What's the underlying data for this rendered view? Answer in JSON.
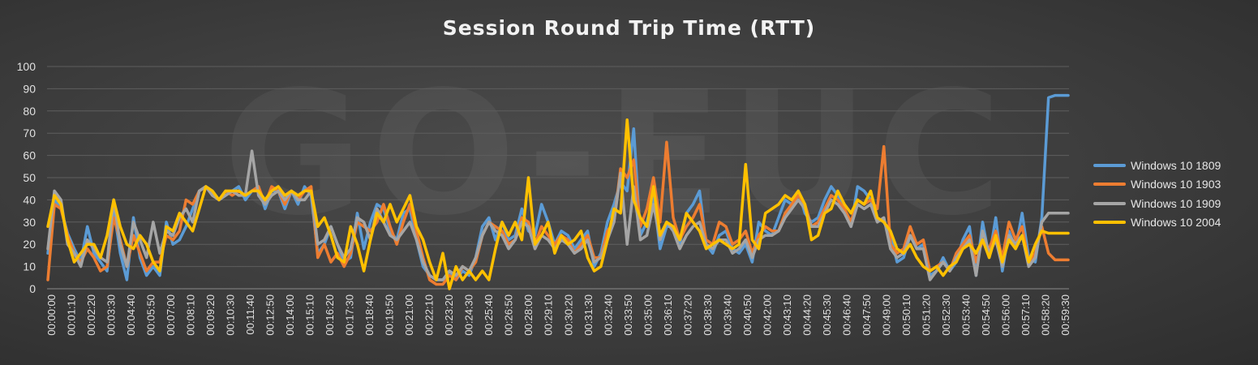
{
  "chart_data": {
    "type": "line",
    "title": "Session Round Trip Time (RTT)",
    "xlabel": "",
    "ylabel": "",
    "ylim": [
      0,
      100
    ],
    "yticks": [
      0,
      10,
      20,
      30,
      40,
      50,
      60,
      70,
      80,
      90,
      100
    ],
    "grid": "horizontal",
    "legend_position": "right",
    "watermark_text": "GO-EUC",
    "x_tick_labels": [
      "00:00:00",
      "00:01:10",
      "00:02:20",
      "00:03:30",
      "00:04:40",
      "00:05:50",
      "00:07:00",
      "00:08:10",
      "00:09:20",
      "00:10:30",
      "00:11:40",
      "00:12:50",
      "00:14:00",
      "00:15:10",
      "00:16:20",
      "00:17:30",
      "00:18:40",
      "00:19:50",
      "00:21:00",
      "00:22:10",
      "00:23:20",
      "00:24:30",
      "00:25:40",
      "00:26:50",
      "00:28:00",
      "00:29:10",
      "00:30:20",
      "00:31:30",
      "00:32:40",
      "00:33:50",
      "00:35:00",
      "00:36:10",
      "00:37:20",
      "00:38:30",
      "00:39:40",
      "00:40:50",
      "00:42:00",
      "00:43:10",
      "00:44:20",
      "00:45:30",
      "00:46:40",
      "00:47:50",
      "00:49:00",
      "00:50:10",
      "00:51:20",
      "00:52:30",
      "00:53:40",
      "00:54:50",
      "00:56:00",
      "00:57:10",
      "00:58:20",
      "00:59:30"
    ],
    "series": [
      {
        "name": "Windows 10 1809",
        "color": "#5b9bd5",
        "values": [
          16,
          40,
          36,
          25,
          18,
          12,
          28,
          16,
          12,
          8,
          36,
          16,
          4,
          32,
          14,
          6,
          10,
          6,
          30,
          20,
          22,
          28,
          36,
          44,
          46,
          44,
          40,
          42,
          44,
          46,
          40,
          44,
          46,
          36,
          44,
          44,
          36,
          44,
          38,
          46,
          42,
          16,
          20,
          28,
          20,
          12,
          14,
          34,
          18,
          30,
          38,
          36,
          26,
          22,
          34,
          36,
          22,
          10,
          6,
          4,
          4,
          8,
          4,
          8,
          6,
          14,
          28,
          32,
          22,
          30,
          22,
          24,
          36,
          26,
          24,
          38,
          30,
          20,
          26,
          24,
          18,
          22,
          26,
          10,
          16,
          30,
          38,
          48,
          44,
          72,
          24,
          30,
          42,
          18,
          28,
          28,
          20,
          34,
          38,
          44,
          20,
          16,
          24,
          26,
          18,
          16,
          20,
          12,
          30,
          26,
          24,
          32,
          40,
          38,
          44,
          34,
          30,
          32,
          40,
          46,
          42,
          36,
          28,
          46,
          44,
          40,
          32,
          30,
          24,
          12,
          14,
          24,
          18,
          20,
          6,
          8,
          14,
          8,
          12,
          22,
          28,
          6,
          30,
          14,
          32,
          8,
          26,
          18,
          34,
          14,
          12,
          32,
          86,
          87,
          87,
          87
        ]
      },
      {
        "name": "Windows 10 1903",
        "color": "#ed7d31",
        "values": [
          4,
          38,
          36,
          24,
          16,
          12,
          18,
          14,
          8,
          10,
          32,
          22,
          10,
          24,
          16,
          8,
          12,
          12,
          24,
          22,
          26,
          40,
          38,
          44,
          46,
          42,
          40,
          44,
          42,
          44,
          42,
          44,
          46,
          38,
          46,
          44,
          38,
          44,
          40,
          44,
          46,
          14,
          20,
          12,
          16,
          10,
          16,
          30,
          28,
          26,
          30,
          38,
          28,
          20,
          30,
          38,
          26,
          14,
          4,
          2,
          2,
          6,
          4,
          10,
          8,
          12,
          24,
          30,
          28,
          26,
          20,
          22,
          32,
          30,
          20,
          28,
          24,
          20,
          24,
          22,
          16,
          20,
          24,
          14,
          14,
          26,
          30,
          54,
          50,
          58,
          28,
          36,
          50,
          30,
          66,
          32,
          22,
          28,
          32,
          38,
          22,
          20,
          30,
          28,
          20,
          22,
          26,
          16,
          24,
          28,
          26,
          26,
          34,
          38,
          42,
          38,
          28,
          30,
          36,
          42,
          40,
          36,
          30,
          40,
          38,
          40,
          36,
          64,
          20,
          16,
          18,
          28,
          20,
          22,
          8,
          10,
          12,
          8,
          16,
          20,
          24,
          12,
          22,
          18,
          26,
          14,
          30,
          22,
          28,
          12,
          16,
          28,
          16,
          13,
          13,
          13
        ]
      },
      {
        "name": "Windows 10 1909",
        "color": "#a5a5a5",
        "values": [
          18,
          44,
          40,
          20,
          16,
          10,
          22,
          18,
          14,
          12,
          40,
          20,
          10,
          30,
          22,
          14,
          30,
          16,
          26,
          24,
          32,
          36,
          30,
          44,
          46,
          42,
          40,
          42,
          44,
          42,
          42,
          62,
          42,
          38,
          42,
          44,
          40,
          44,
          40,
          40,
          44,
          20,
          22,
          28,
          20,
          14,
          18,
          32,
          30,
          22,
          36,
          30,
          24,
          22,
          26,
          30,
          22,
          12,
          6,
          4,
          4,
          8,
          6,
          10,
          8,
          14,
          24,
          30,
          26,
          24,
          18,
          22,
          30,
          28,
          18,
          24,
          22,
          18,
          22,
          20,
          16,
          18,
          22,
          12,
          14,
          22,
          30,
          52,
          20,
          46,
          22,
          24,
          38,
          22,
          30,
          26,
          18,
          24,
          28,
          30,
          20,
          18,
          22,
          22,
          16,
          18,
          22,
          14,
          22,
          24,
          24,
          26,
          32,
          36,
          40,
          36,
          28,
          28,
          34,
          40,
          38,
          34,
          28,
          38,
          36,
          38,
          30,
          32,
          18,
          14,
          16,
          24,
          18,
          18,
          4,
          8,
          12,
          8,
          14,
          18,
          22,
          6,
          26,
          16,
          22,
          10,
          24,
          20,
          24,
          10,
          14,
          30,
          34,
          34,
          34,
          34
        ]
      },
      {
        "name": "Windows 10 2004",
        "color": "#ffc000",
        "values": [
          28,
          42,
          38,
          22,
          12,
          16,
          20,
          20,
          14,
          24,
          40,
          28,
          20,
          18,
          24,
          20,
          12,
          8,
          28,
          26,
          34,
          30,
          26,
          36,
          46,
          44,
          40,
          44,
          44,
          44,
          42,
          44,
          44,
          40,
          44,
          46,
          42,
          44,
          42,
          44,
          44,
          28,
          32,
          24,
          14,
          12,
          28,
          20,
          8,
          22,
          34,
          30,
          38,
          30,
          36,
          42,
          28,
          22,
          12,
          4,
          16,
          0,
          10,
          4,
          8,
          4,
          8,
          4,
          18,
          30,
          24,
          30,
          22,
          50,
          20,
          24,
          30,
          16,
          24,
          20,
          22,
          26,
          14,
          8,
          10,
          22,
          36,
          34,
          76,
          40,
          32,
          28,
          46,
          24,
          30,
          28,
          22,
          34,
          30,
          26,
          18,
          20,
          22,
          20,
          18,
          20,
          56,
          22,
          18,
          34,
          36,
          38,
          42,
          40,
          44,
          38,
          22,
          24,
          34,
          36,
          44,
          38,
          34,
          40,
          38,
          44,
          32,
          30,
          26,
          18,
          16,
          20,
          14,
          10,
          8,
          10,
          6,
          10,
          12,
          18,
          20,
          16,
          22,
          14,
          24,
          12,
          22,
          18,
          24,
          12,
          20,
          26,
          25,
          25,
          25,
          25
        ]
      }
    ]
  }
}
